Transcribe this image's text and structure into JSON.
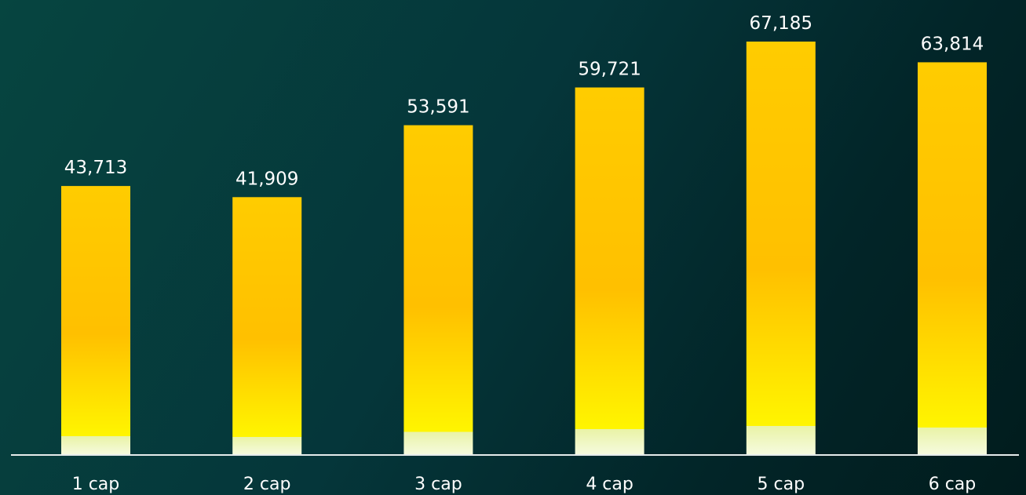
{
  "chart_data": {
    "type": "bar",
    "categories": [
      "1 cap",
      "2 cap",
      "3 cap",
      "4 cap",
      "5 cap",
      "6 cap"
    ],
    "values": [
      43713,
      41909,
      53591,
      59721,
      67185,
      63814
    ],
    "data_labels": [
      "43,713",
      "41,909",
      "53,591",
      "59,721",
      "67,185",
      "63,814"
    ],
    "title": "",
    "xlabel": "",
    "ylabel": "",
    "ylim": [
      0,
      67185
    ],
    "grid": false,
    "legend": "none",
    "colors": {
      "bar_top": "#ffcc00",
      "bar_mid": "#ffc000",
      "bar_bottom": "#fff500",
      "bar_base_glow": "#f4fbd0",
      "axis_line": "#e6ecec",
      "text": "#ffffff"
    }
  }
}
